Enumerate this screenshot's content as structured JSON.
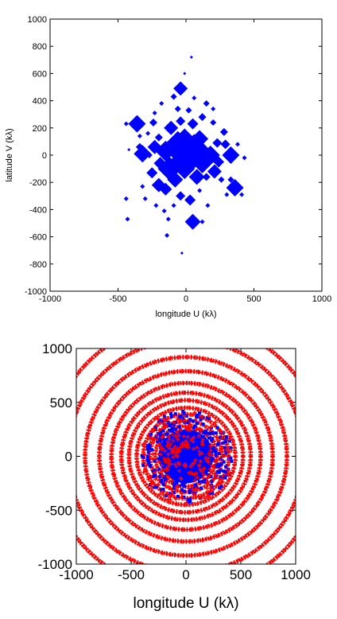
{
  "chart_data": [
    {
      "type": "scatter",
      "title": "",
      "xlabel": "longitude U (kλ)",
      "ylabel": "latitude V (kλ)",
      "xlim": [
        -1000,
        1000
      ],
      "ylim": [
        -1000,
        1000
      ],
      "xticks": [
        "-1000",
        "-500",
        "0",
        "500",
        "1000"
      ],
      "yticks": [
        "1000",
        "800",
        "600",
        "400",
        "200",
        "0",
        "-200",
        "-400",
        "-600",
        "-800",
        "-1000"
      ],
      "grid": false,
      "legend": "none",
      "colors": {
        "points": "#0000ff"
      },
      "series": [
        {
          "marker": "diamond",
          "points": [
            [
              40,
              720
            ],
            [
              -40,
              490
            ],
            [
              -10,
              600
            ],
            [
              -90,
              430
            ],
            [
              60,
              420
            ],
            [
              -180,
              380
            ],
            [
              150,
              380
            ],
            [
              -230,
              310
            ],
            [
              -380,
              260
            ],
            [
              -360,
              230
            ],
            [
              -340,
              140
            ],
            [
              -440,
              230
            ],
            [
              -280,
              160
            ],
            [
              -320,
              10
            ],
            [
              -420,
              40
            ],
            [
              -230,
              60
            ],
            [
              -200,
              130
            ],
            [
              -110,
              200
            ],
            [
              -40,
              250
            ],
            [
              50,
              230
            ],
            [
              120,
              280
            ],
            [
              200,
              240
            ],
            [
              280,
              170
            ],
            [
              230,
              90
            ],
            [
              330,
              0
            ],
            [
              380,
              80
            ],
            [
              430,
              -20
            ],
            [
              360,
              -240
            ],
            [
              300,
              -290
            ],
            [
              410,
              -290
            ],
            [
              260,
              -180
            ],
            [
              210,
              -120
            ],
            [
              150,
              -160
            ],
            [
              100,
              -260
            ],
            [
              30,
              -330
            ],
            [
              -40,
              -300
            ],
            [
              -90,
              -370
            ],
            [
              -150,
              -250
            ],
            [
              -200,
              -220
            ],
            [
              -250,
              -130
            ],
            [
              -320,
              -230
            ],
            [
              -300,
              -320
            ],
            [
              -440,
              -320
            ],
            [
              -430,
              -470
            ],
            [
              -160,
              -410
            ],
            [
              -130,
              -470
            ],
            [
              -140,
              -590
            ],
            [
              50,
              -490
            ],
            [
              160,
              -370
            ],
            [
              120,
              -490
            ],
            [
              -270,
              0
            ],
            [
              -60,
              60
            ],
            [
              0,
              -40
            ],
            [
              60,
              50
            ],
            [
              -120,
              -100
            ],
            [
              120,
              -40
            ],
            [
              -10,
              -100
            ],
            [
              -10,
              120
            ],
            [
              100,
              120
            ],
            [
              -150,
              30
            ],
            [
              180,
              0
            ],
            [
              -80,
              -180
            ],
            [
              80,
              -160
            ],
            [
              -190,
              -60
            ],
            [
              -240,
              240
            ],
            [
              290,
              80
            ],
            [
              240,
              -50
            ],
            [
              -30,
              -720
            ],
            [
              200,
              340
            ],
            [
              -220,
              -370
            ],
            [
              330,
              -180
            ],
            [
              -340,
              60
            ],
            [
              20,
              330
            ],
            [
              -60,
              340
            ]
          ],
          "radii": [
            2,
            9,
            2,
            4,
            3,
            3,
            4,
            3,
            2,
            11,
            3,
            3,
            3,
            11,
            2,
            9,
            5,
            9,
            6,
            7,
            5,
            4,
            5,
            6,
            11,
            3,
            3,
            11,
            3,
            3,
            4,
            9,
            5,
            3,
            7,
            6,
            3,
            8,
            9,
            7,
            3,
            3,
            3,
            3,
            3,
            3,
            3,
            10,
            3,
            3,
            4,
            20,
            20,
            18,
            15,
            16,
            13,
            13,
            11,
            13,
            12,
            10,
            10,
            8,
            5,
            6,
            7,
            2,
            3,
            3,
            4,
            5,
            4,
            4
          ]
        }
      ]
    },
    {
      "type": "scatter",
      "title": "",
      "xlabel": "longitude U (kλ)",
      "ylabel": "",
      "xlim": [
        -1000,
        1000
      ],
      "ylim": [
        -1000,
        1000
      ],
      "xticks": [
        "-1000",
        "-500",
        "0",
        "500",
        "1000"
      ],
      "yticks": [
        "1000",
        "500",
        "0",
        "-500",
        "-1000"
      ],
      "grid": false,
      "legend": "none",
      "colors": {
        "rings": "#ff0000",
        "points": "#0000ff"
      },
      "series": [
        {
          "color": "#ff0000",
          "marker": "plus",
          "ring_radii": [
            280,
            330,
            390,
            450,
            520,
            590,
            680,
            790,
            920,
            1080,
            1250
          ]
        },
        {
          "color": "#0000ff",
          "marker": "dot",
          "core_radius": 250,
          "scatter_radius": 430
        }
      ]
    }
  ]
}
